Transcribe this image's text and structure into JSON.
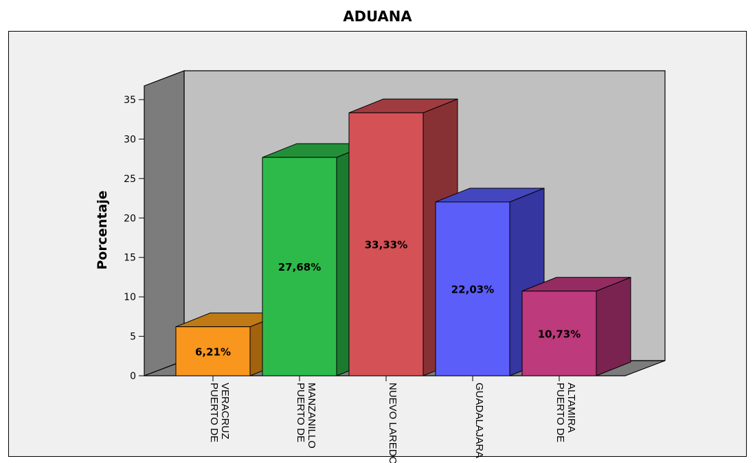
{
  "chart_data": {
    "type": "bar",
    "title": "ADUANA",
    "ylabel": "Porcentaje",
    "xlabel": "",
    "ylim": [
      0,
      35
    ],
    "yticks": [
      0,
      5,
      10,
      15,
      20,
      25,
      30,
      35
    ],
    "categories": [
      [
        "PUERTO DE",
        "VERACRUZ"
      ],
      [
        "PUERTO DE",
        "MANZANILLO"
      ],
      [
        "NUEVO LAREDO"
      ],
      [
        "GUADALAJARA"
      ],
      [
        "PUERTO DE",
        "ALTAMIRA"
      ]
    ],
    "values": [
      6.21,
      27.68,
      33.33,
      22.03,
      10.73
    ],
    "value_labels": [
      "6,21%",
      "27,68%",
      "33,33%",
      "22,03%",
      "10,73%"
    ],
    "colors": [
      {
        "front": "#F8961E",
        "side": "#A3620E",
        "top": "#BF7A15"
      },
      {
        "front": "#2EBA4A",
        "side": "#1C7A2F",
        "top": "#239039"
      },
      {
        "front": "#D45155",
        "side": "#883135",
        "top": "#A03C40"
      },
      {
        "front": "#5B5EF8",
        "side": "#3536A0",
        "top": "#4446C0"
      },
      {
        "front": "#BD3A7C",
        "side": "#7A2350",
        "top": "#942C62"
      }
    ],
    "grid": false,
    "three_d": true
  }
}
